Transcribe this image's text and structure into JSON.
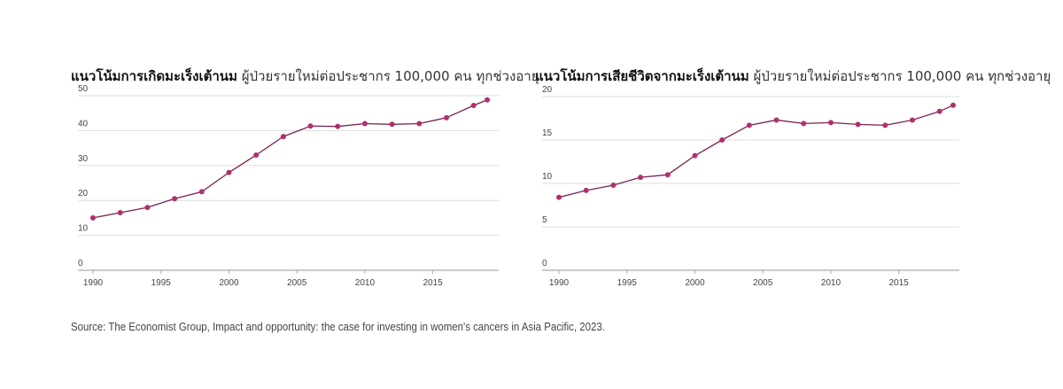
{
  "chart_data": [
    {
      "type": "line",
      "title": "แนวโน้มการเกิดมะเร็งเต้านม",
      "subtitle": "ผู้ป่วยรายใหม่ต่อประชากร 100,000 คน ทุกช่วงอายุ",
      "x": [
        1990,
        1992,
        1994,
        1996,
        1998,
        2000,
        2002,
        2004,
        2006,
        2008,
        2010,
        2012,
        2014,
        2016,
        2018,
        2019
      ],
      "values": [
        15,
        16.5,
        18,
        20.5,
        22.5,
        28,
        33,
        38.3,
        41.3,
        41.2,
        42,
        41.8,
        42,
        43.7,
        47.2,
        48.8
      ],
      "ylim": [
        0,
        50
      ],
      "yticks": [
        "0",
        "10",
        "20",
        "30",
        "40",
        "50"
      ],
      "xticks": [
        "1990",
        "1995",
        "2000",
        "2005",
        "2010",
        "2015"
      ],
      "xlim": [
        1990,
        2019
      ],
      "grid": true,
      "color": "#b0306f"
    },
    {
      "type": "line",
      "title": "แนวโน้มการเสียชีวิตจากมะเร็งเต้านม",
      "subtitle": "ผู้ป่วยรายใหม่ต่อประชากร 100,000 คน ทุกช่วงอายุ",
      "x": [
        1990,
        1992,
        1994,
        1996,
        1998,
        2000,
        2002,
        2004,
        2006,
        2008,
        2010,
        2012,
        2014,
        2016,
        2018,
        2019
      ],
      "values": [
        8.4,
        9.2,
        9.8,
        10.7,
        11,
        13.2,
        15,
        16.7,
        17.3,
        16.9,
        17,
        16.8,
        16.7,
        17.3,
        18.3,
        19
      ],
      "ylim": [
        0,
        20
      ],
      "yticks": [
        "0",
        "5",
        "10",
        "15",
        "20"
      ],
      "xticks": [
        "1990",
        "1995",
        "2000",
        "2005",
        "2010",
        "2015"
      ],
      "xlim": [
        1990,
        2019
      ],
      "grid": true,
      "color": "#b0306f"
    }
  ],
  "source": "Source: The Economist Group, Impact and opportunity: the case for investing in women's cancers in Asia Pacific, 2023."
}
